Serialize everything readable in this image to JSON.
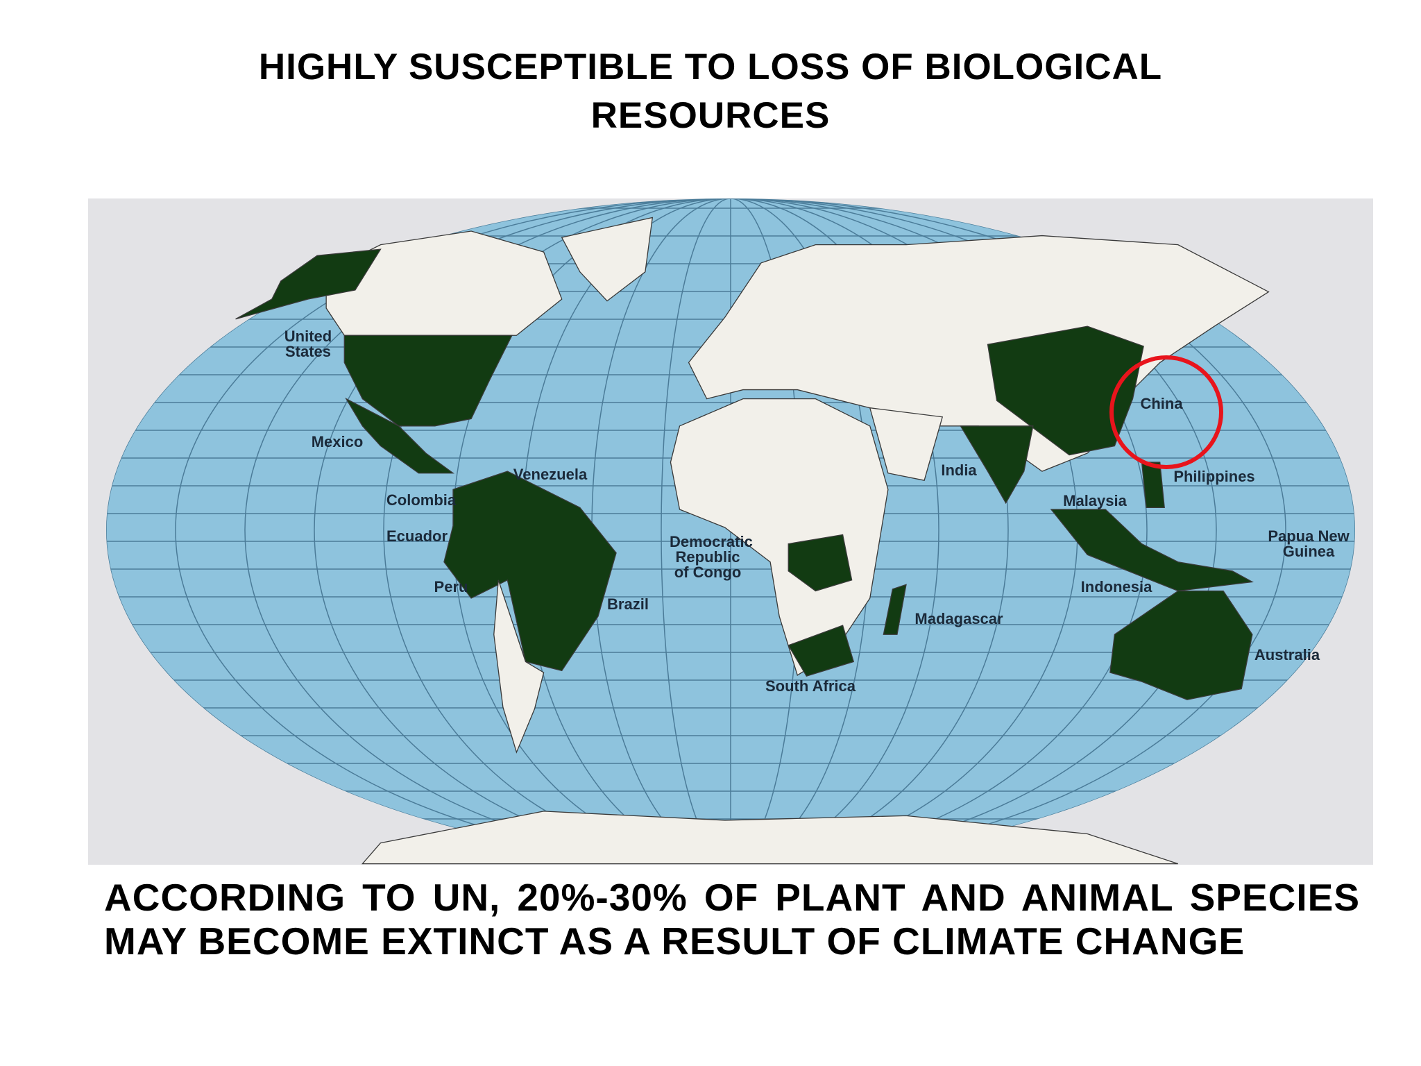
{
  "title": "HIGHLY SUSCEPTIBLE TO LOSS OF BIOLOGICAL RESOURCES",
  "map": {
    "labels": [
      "United States",
      "Mexico",
      "Venezuela",
      "Colombia",
      "Ecuador",
      "Peru",
      "Brazil",
      "Democratic Republic of Congo",
      "Madagascar",
      "South Africa",
      "India",
      "China",
      "Philippines",
      "Malaysia",
      "Papua New Guinea",
      "Indonesia",
      "Australia"
    ]
  },
  "caption": "ACCORDING TO UN, 20%-30% OF PLANT AND ANIMAL SPECIES MAY BECOME EXTINCT AS A RESULT OF CLIMATE CHANGE"
}
